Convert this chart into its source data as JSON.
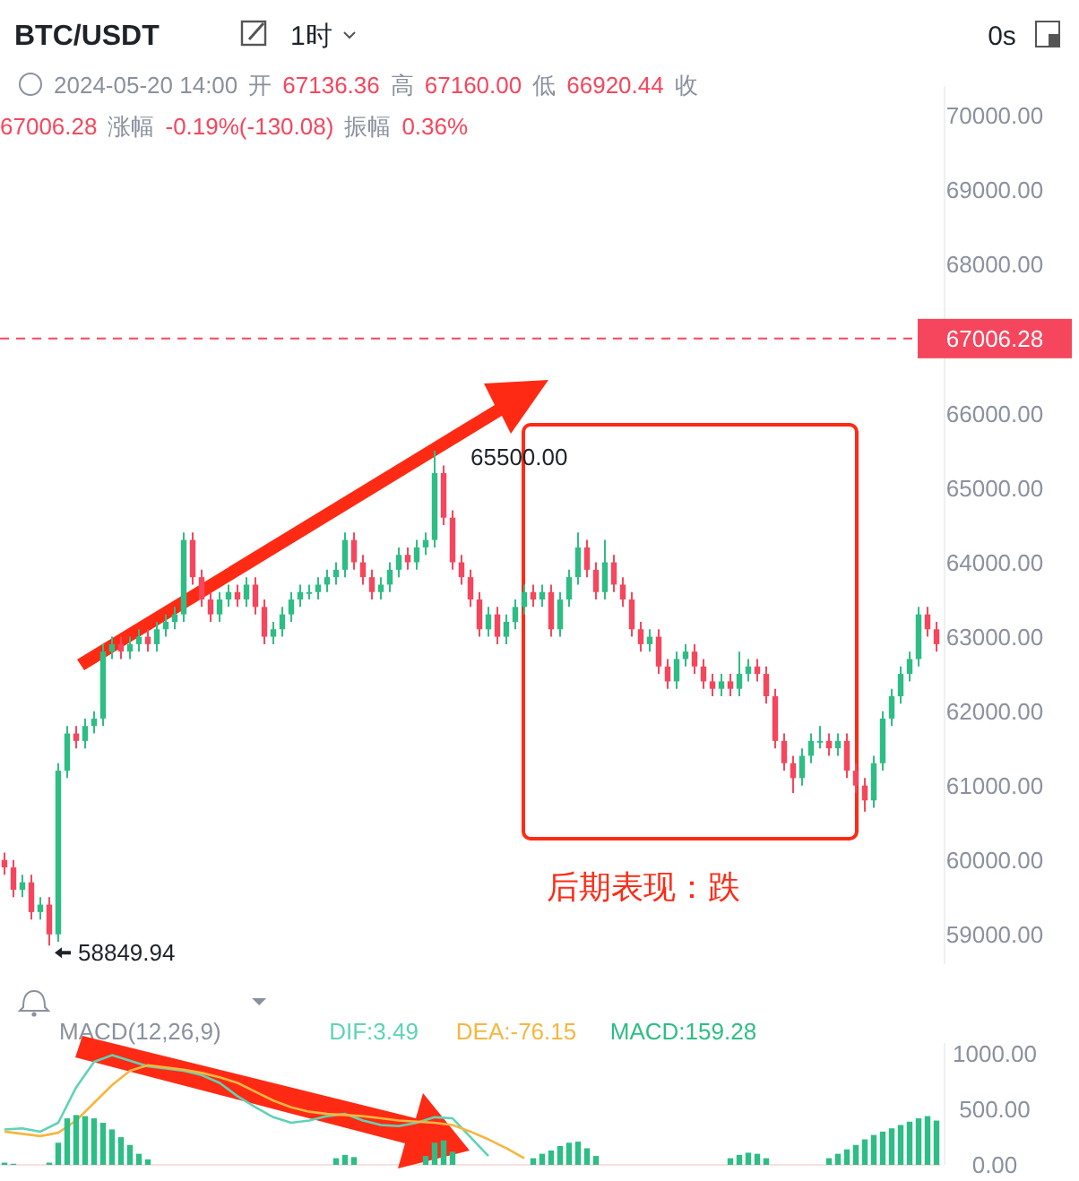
{
  "chart_data": [
    {
      "type": "candlestick",
      "title": "BTC/USDT",
      "subtitle": "1时",
      "annotations": [
        "0s",
        "2024-05-20 14:00",
        "开",
        "67136.36",
        "高",
        "67160.00",
        "低",
        "66920.44",
        "收",
        "67006.28",
        "涨幅",
        "-0.19%(-130.08)",
        "振幅",
        "0.36%",
        "后期表现：跌",
        "65500.00",
        "58849.94"
      ],
      "categories": [
        null,
        null,
        null,
        null,
        null,
        null,
        null,
        null,
        null,
        null,
        null,
        null,
        null,
        null,
        null,
        null,
        null,
        null,
        null,
        null,
        null,
        null,
        null,
        null,
        null,
        null,
        null,
        null,
        null,
        null,
        null,
        null,
        null,
        null,
        null,
        null,
        null,
        null,
        null,
        null,
        null,
        null,
        null,
        null,
        null,
        null,
        null,
        null,
        null,
        null,
        null,
        null,
        null,
        null,
        null,
        null,
        null,
        null,
        null,
        null,
        null,
        null,
        null,
        null,
        null,
        null,
        null,
        null,
        null,
        null,
        null,
        null,
        null,
        null,
        null,
        null,
        null,
        null,
        null,
        null,
        null,
        null,
        null,
        null,
        null,
        null,
        null,
        null,
        null,
        null,
        null,
        null,
        null,
        null,
        null,
        null,
        null,
        null,
        null,
        null,
        null,
        null,
        null,
        null,
        null
      ],
      "ohlc": [
        [
          60000,
          60100,
          59800,
          59900
        ],
        [
          59900,
          60000,
          59500,
          59600
        ],
        [
          59600,
          59800,
          59500,
          59700
        ],
        [
          59700,
          59800,
          59200,
          59300
        ],
        [
          59300,
          59500,
          59200,
          59400
        ],
        [
          59400,
          59500,
          58849.94,
          59000
        ],
        [
          59000,
          61300,
          58900,
          61200
        ],
        [
          61200,
          61800,
          61100,
          61700
        ],
        [
          61700,
          61800,
          61500,
          61600
        ],
        [
          61600,
          61900,
          61500,
          61800
        ],
        [
          61800,
          62000,
          61700,
          61900
        ],
        [
          61900,
          62900,
          61800,
          62800
        ],
        [
          62800,
          63000,
          62700,
          62900
        ],
        [
          62900,
          63000,
          62700,
          62800
        ],
        [
          62800,
          63000,
          62700,
          62900
        ],
        [
          62900,
          63100,
          62800,
          63000
        ],
        [
          63000,
          63100,
          62800,
          62900
        ],
        [
          62900,
          63200,
          62800,
          63100
        ],
        [
          63100,
          63300,
          63000,
          63200
        ],
        [
          63200,
          63400,
          63100,
          63300
        ],
        [
          63300,
          64400,
          63200,
          64300
        ],
        [
          64300,
          64400,
          63700,
          63800
        ],
        [
          63800,
          63900,
          63400,
          63500
        ],
        [
          63500,
          63600,
          63200,
          63300
        ],
        [
          63300,
          63600,
          63200,
          63500
        ],
        [
          63500,
          63700,
          63400,
          63600
        ],
        [
          63600,
          63700,
          63400,
          63500
        ],
        [
          63500,
          63800,
          63400,
          63700
        ],
        [
          63700,
          63800,
          63300,
          63400
        ],
        [
          63400,
          63500,
          62900,
          63000
        ],
        [
          63000,
          63200,
          62900,
          63100
        ],
        [
          63100,
          63400,
          63000,
          63300
        ],
        [
          63300,
          63600,
          63200,
          63500
        ],
        [
          63500,
          63700,
          63400,
          63600
        ],
        [
          63600,
          63700,
          63500,
          63600
        ],
        [
          63600,
          63800,
          63500,
          63700
        ],
        [
          63700,
          63900,
          63600,
          63800
        ],
        [
          63800,
          64000,
          63700,
          63900
        ],
        [
          63900,
          64400,
          63800,
          64300
        ],
        [
          64300,
          64400,
          63900,
          64000
        ],
        [
          64000,
          64100,
          63700,
          63800
        ],
        [
          63800,
          63900,
          63500,
          63600
        ],
        [
          63600,
          63800,
          63500,
          63700
        ],
        [
          63700,
          64000,
          63600,
          63900
        ],
        [
          63900,
          64200,
          63800,
          64100
        ],
        [
          64100,
          64200,
          63900,
          64000
        ],
        [
          64000,
          64300,
          63900,
          64200
        ],
        [
          64200,
          64400,
          64100,
          64300
        ],
        [
          64300,
          65500,
          64200,
          65200
        ],
        [
          65200,
          65300,
          64500,
          64600
        ],
        [
          64600,
          64700,
          63900,
          64000
        ],
        [
          64000,
          64100,
          63700,
          63800
        ],
        [
          63800,
          63900,
          63400,
          63500
        ],
        [
          63500,
          63600,
          63000,
          63100
        ],
        [
          63100,
          63400,
          63000,
          63300
        ],
        [
          63300,
          63400,
          62900,
          63000
        ],
        [
          63000,
          63300,
          62900,
          63200
        ],
        [
          63200,
          63500,
          63100,
          63400
        ],
        [
          63400,
          63700,
          63300,
          63600
        ],
        [
          63600,
          63700,
          63400,
          63500
        ],
        [
          63500,
          63700,
          63400,
          63600
        ],
        [
          63600,
          63700,
          63000,
          63100
        ],
        [
          63100,
          63600,
          63000,
          63500
        ],
        [
          63500,
          63900,
          63400,
          63800
        ],
        [
          63800,
          64400,
          63700,
          64200
        ],
        [
          64200,
          64300,
          63800,
          63900
        ],
        [
          63900,
          64000,
          63500,
          63600
        ],
        [
          63600,
          64300,
          63500,
          64000
        ],
        [
          64000,
          64100,
          63600,
          63700
        ],
        [
          63700,
          63800,
          63400,
          63500
        ],
        [
          63500,
          63600,
          63000,
          63100
        ],
        [
          63100,
          63200,
          62800,
          62900
        ],
        [
          62900,
          63100,
          62800,
          63000
        ],
        [
          63000,
          63100,
          62500,
          62600
        ],
        [
          62600,
          62700,
          62300,
          62400
        ],
        [
          62400,
          62800,
          62300,
          62700
        ],
        [
          62700,
          62900,
          62600,
          62800
        ],
        [
          62800,
          62900,
          62500,
          62600
        ],
        [
          62600,
          62700,
          62300,
          62400
        ],
        [
          62400,
          62500,
          62200,
          62300
        ],
        [
          62300,
          62500,
          62200,
          62400
        ],
        [
          62400,
          62500,
          62200,
          62300
        ],
        [
          62300,
          62800,
          62200,
          62500
        ],
        [
          62500,
          62700,
          62400,
          62600
        ],
        [
          62600,
          62700,
          62400,
          62500
        ],
        [
          62500,
          62600,
          62100,
          62200
        ],
        [
          62200,
          62300,
          61500,
          61600
        ],
        [
          61600,
          61700,
          61200,
          61300
        ],
        [
          61300,
          61400,
          60900,
          61100
        ],
        [
          61100,
          61500,
          61000,
          61400
        ],
        [
          61400,
          61700,
          61300,
          61600
        ],
        [
          61600,
          61800,
          61500,
          61600
        ],
        [
          61600,
          61700,
          61400,
          61500
        ],
        [
          61500,
          61700,
          61400,
          61600
        ],
        [
          61600,
          61700,
          61100,
          61200
        ],
        [
          61200,
          61300,
          60900,
          61000
        ],
        [
          61000,
          61100,
          60650,
          60800
        ],
        [
          60800,
          61400,
          60700,
          61300
        ],
        [
          61300,
          62000,
          61200,
          61900
        ],
        [
          61900,
          62300,
          61800,
          62200
        ],
        [
          62200,
          62600,
          62100,
          62500
        ],
        [
          62500,
          62800,
          62400,
          62700
        ],
        [
          62700,
          63400,
          62600,
          63300
        ],
        [
          63300,
          63400,
          63000,
          63100
        ],
        [
          63100,
          63200,
          62800,
          62900
        ]
      ],
      "ylim": [
        58600,
        70400
      ],
      "yticks": [
        {
          "value": 59000,
          "label": "59000.00"
        },
        {
          "value": 60000,
          "label": "60000.00"
        },
        {
          "value": 61000,
          "label": "61000.00"
        },
        {
          "value": 62000,
          "label": "62000.00"
        },
        {
          "value": 63000,
          "label": "63000.00"
        },
        {
          "value": 64000,
          "label": "64000.00"
        },
        {
          "value": 65000,
          "label": "65000.00"
        },
        {
          "value": 66000,
          "label": "66000.00"
        },
        {
          "value": 67000,
          "label": null
        },
        {
          "value": 68000,
          "label": "68000.00"
        },
        {
          "value": 69000,
          "label": "69000.00"
        },
        {
          "value": 70000,
          "label": "70000.00"
        }
      ],
      "ref_lines": [
        {
          "axis": "y",
          "value": 67006.28,
          "label": "67006.28",
          "color": "#f6465d",
          "line_style": "dashed"
        }
      ]
    },
    {
      "type": "bar",
      "title": "MACD(12,26,9)",
      "categories": [
        null,
        null,
        null,
        null,
        null,
        null,
        null,
        null,
        null,
        null,
        null,
        null,
        null,
        null,
        null,
        null,
        null,
        null,
        null,
        null,
        null,
        null,
        null,
        null,
        null,
        null,
        null,
        null,
        null,
        null,
        null,
        null,
        null,
        null,
        null,
        null,
        null,
        null,
        null,
        null,
        null,
        null,
        null,
        null,
        null,
        null,
        null,
        null,
        null,
        null,
        null,
        null,
        null,
        null,
        null,
        null,
        null,
        null,
        null,
        null,
        null,
        null,
        null,
        null,
        null,
        null,
        null,
        null,
        null,
        null,
        null,
        null,
        null,
        null,
        null,
        null,
        null,
        null,
        null,
        null,
        null,
        null,
        null,
        null,
        null,
        null,
        null,
        null,
        null,
        null,
        null,
        null,
        null,
        null,
        null,
        null,
        null,
        null,
        null,
        null,
        null,
        null,
        null,
        null,
        null
      ],
      "ylim": [
        0,
        1100
      ],
      "legend": "top",
      "yticks": [
        {
          "value": 0,
          "label": "0.00"
        },
        {
          "value": 500,
          "label": "500.00"
        },
        {
          "value": 1000,
          "label": "1000.00"
        }
      ],
      "series": [
        {
          "name": "DIF:3.49",
          "type": "line",
          "color": "#5fd3b5",
          "values": [
            320,
            null,
            330,
            null,
            300,
            null,
            380,
            null,
            700,
            null,
            930,
            null,
            990,
            null,
            940,
            null,
            890,
            null,
            870,
            null,
            850,
            null,
            810,
            null,
            740,
            null,
            620,
            null,
            520,
            null,
            430,
            null,
            380,
            null,
            400,
            null,
            440,
            null,
            460,
            null,
            400,
            null,
            360,
            null,
            350,
            null,
            380,
            null,
            430,
            null,
            420,
            null,
            250,
            null,
            80,
            null,
            null,
            null,
            null,
            null,
            null,
            null,
            null,
            null,
            null,
            null,
            null,
            null,
            null,
            null,
            null,
            null,
            null,
            null,
            null,
            null,
            null,
            null,
            null,
            null,
            null,
            null,
            null,
            null,
            null,
            null,
            null,
            null,
            null,
            null,
            null,
            null,
            null,
            null,
            null,
            null,
            null,
            null,
            null,
            null,
            null,
            null,
            null,
            null,
            null
          ]
        },
        {
          "name": "DEA:-76.15",
          "type": "line",
          "color": "#f5b640",
          "values": [
            300,
            null,
            280,
            null,
            260,
            null,
            290,
            null,
            400,
            null,
            560,
            null,
            720,
            null,
            850,
            null,
            900,
            null,
            880,
            null,
            860,
            null,
            830,
            null,
            790,
            null,
            740,
            null,
            660,
            null,
            580,
            null,
            520,
            null,
            480,
            null,
            460,
            null,
            450,
            null,
            440,
            null,
            420,
            null,
            400,
            null,
            390,
            null,
            380,
            null,
            360,
            null,
            300,
            null,
            230,
            null,
            150,
            null,
            60,
            null,
            null,
            null,
            null,
            null,
            null,
            null,
            null,
            null,
            null,
            null,
            null,
            null,
            null,
            null,
            null,
            null,
            null,
            null,
            null,
            null,
            null,
            null,
            null,
            null,
            null,
            null,
            null,
            null,
            null,
            null,
            null,
            null,
            null,
            null,
            null,
            null,
            null,
            null,
            null,
            null,
            null,
            null,
            null,
            null,
            null
          ]
        },
        {
          "name": "MACD:159.28",
          "type": "bar",
          "color": "#2ebd85",
          "values": [
            20,
            10,
            null,
            null,
            null,
            20,
            200,
            420,
            450,
            440,
            420,
            380,
            320,
            250,
            180,
            100,
            50,
            null,
            null,
            null,
            null,
            null,
            null,
            null,
            null,
            null,
            null,
            null,
            null,
            null,
            null,
            null,
            null,
            null,
            null,
            null,
            null,
            60,
            90,
            70,
            null,
            null,
            null,
            null,
            null,
            null,
            null,
            80,
            200,
            220,
            120,
            null,
            null,
            null,
            null,
            null,
            null,
            null,
            null,
            60,
            100,
            130,
            170,
            200,
            210,
            150,
            80,
            null,
            null,
            null,
            null,
            null,
            null,
            null,
            null,
            null,
            null,
            null,
            null,
            null,
            null,
            60,
            90,
            110,
            100,
            60,
            null,
            null,
            null,
            null,
            null,
            null,
            60,
            100,
            140,
            180,
            230,
            270,
            300,
            330,
            360,
            390,
            420,
            440,
            400
          ]
        }
      ]
    }
  ]
}
